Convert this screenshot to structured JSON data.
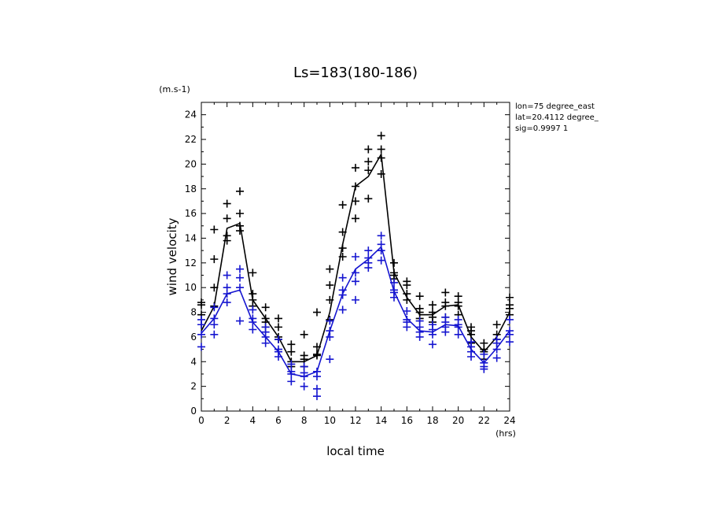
{
  "chart_data": {
    "type": "line",
    "title": "Ls=183(180-186)",
    "xlabel": "local time",
    "ylabel": "wind velocity",
    "x_unit": "(hrs)",
    "y_unit": "(m.s-1)",
    "xlim": [
      0,
      24
    ],
    "ylim": [
      0,
      25
    ],
    "xticks": [
      0,
      2,
      4,
      6,
      8,
      10,
      12,
      14,
      16,
      18,
      20,
      22,
      24
    ],
    "yticks": [
      0,
      2,
      4,
      6,
      8,
      10,
      12,
      14,
      16,
      18,
      20,
      22,
      24
    ],
    "grid": false,
    "annotations": [
      "lon=75 degree_east",
      "lat=20.4112 degree_",
      "sig=0.9997 1"
    ],
    "x": [
      0,
      1,
      2,
      3,
      4,
      5,
      6,
      7,
      8,
      9,
      10,
      11,
      12,
      13,
      14,
      15,
      16,
      17,
      18,
      19,
      20,
      21,
      22,
      23,
      24
    ],
    "series": [
      {
        "color": "#000000",
        "values": [
          6.5,
          8.5,
          14.8,
          15.2,
          9.0,
          7.5,
          6.0,
          4.0,
          4.0,
          4.5,
          8.0,
          13.5,
          18.2,
          19.0,
          20.8,
          11.2,
          9.2,
          7.8,
          7.8,
          8.5,
          8.6,
          6.0,
          4.8,
          6.0,
          8.0
        ],
        "scatter": [
          [
            7.8,
            8.6,
            7.0,
            8.8
          ],
          [
            8.5,
            10.0,
            12.3,
            14.7
          ],
          [
            14.2,
            15.6,
            16.8,
            13.8
          ],
          [
            15.0,
            16.0,
            17.8,
            14.6
          ],
          [
            9.5,
            11.2,
            8.5,
            9.0
          ],
          [
            7.5,
            8.4,
            7.2,
            6.8
          ],
          [
            6.0,
            7.5,
            6.8,
            5.8
          ],
          [
            4.0,
            5.4,
            3.6,
            4.8
          ],
          [
            4.2,
            6.2,
            3.6,
            4.5
          ],
          [
            4.5,
            8.0,
            5.2,
            4.6
          ],
          [
            9.0,
            11.5,
            10.2,
            7.4
          ],
          [
            12.5,
            16.7,
            14.5,
            13.2
          ],
          [
            19.7,
            17.0,
            15.6,
            18.2
          ],
          [
            19.5,
            21.2,
            17.2,
            20.2
          ],
          [
            21.2,
            22.3,
            19.2,
            20.5
          ],
          [
            11.2,
            12.0,
            10.7,
            11.0
          ],
          [
            10.2,
            9.5,
            9.0,
            10.5
          ],
          [
            8.0,
            9.3,
            7.5,
            8.3
          ],
          [
            7.6,
            8.6,
            7.2,
            8.0
          ],
          [
            8.5,
            9.6,
            7.6,
            8.8
          ],
          [
            8.5,
            9.3,
            7.8,
            8.8
          ],
          [
            6.5,
            6.8,
            5.5,
            6.2
          ],
          [
            4.8,
            5.5,
            4.2,
            5.0
          ],
          [
            6.2,
            7.0,
            5.5,
            5.8
          ],
          [
            8.6,
            9.2,
            7.8,
            8.3
          ]
        ]
      },
      {
        "color": "#1515d0",
        "values": [
          6.3,
          7.5,
          9.5,
          9.8,
          7.2,
          6.0,
          4.8,
          3.0,
          2.8,
          3.2,
          6.5,
          9.5,
          11.5,
          12.3,
          13.3,
          9.7,
          7.5,
          6.5,
          6.4,
          7.0,
          6.9,
          5.0,
          3.9,
          5.1,
          6.5
        ],
        "scatter": [
          [
            6.2,
            7.4,
            5.2,
            7.0
          ],
          [
            7.5,
            8.4,
            6.2,
            7.0
          ],
          [
            9.5,
            11.0,
            8.8,
            10.0
          ],
          [
            10.0,
            11.5,
            7.3,
            10.8
          ],
          [
            7.2,
            8.2,
            6.6,
            7.5
          ],
          [
            6.0,
            6.8,
            5.5,
            6.4
          ],
          [
            5.0,
            5.8,
            4.4,
            4.8
          ],
          [
            3.0,
            3.8,
            2.4,
            3.2
          ],
          [
            2.8,
            3.6,
            2.0,
            3.1
          ],
          [
            3.2,
            1.8,
            1.2,
            2.8
          ],
          [
            6.5,
            7.3,
            4.2,
            6.0
          ],
          [
            9.8,
            10.8,
            8.2,
            9.4
          ],
          [
            12.5,
            11.2,
            9.0,
            10.5
          ],
          [
            12.4,
            13.0,
            11.6,
            12.0
          ],
          [
            13.5,
            14.2,
            12.2,
            13.0
          ],
          [
            9.8,
            10.4,
            9.2,
            9.6
          ],
          [
            7.4,
            8.1,
            6.8,
            7.2
          ],
          [
            6.4,
            7.3,
            6.0,
            6.8
          ],
          [
            6.2,
            7.0,
            5.4,
            6.6
          ],
          [
            6.8,
            7.6,
            6.4,
            7.2
          ],
          [
            6.8,
            7.4,
            6.2,
            7.0
          ],
          [
            4.8,
            5.6,
            4.4,
            5.2
          ],
          [
            3.9,
            4.6,
            3.4,
            3.6
          ],
          [
            5.0,
            5.8,
            4.3,
            5.5
          ],
          [
            6.5,
            7.4,
            5.6,
            6.2
          ]
        ]
      }
    ]
  }
}
